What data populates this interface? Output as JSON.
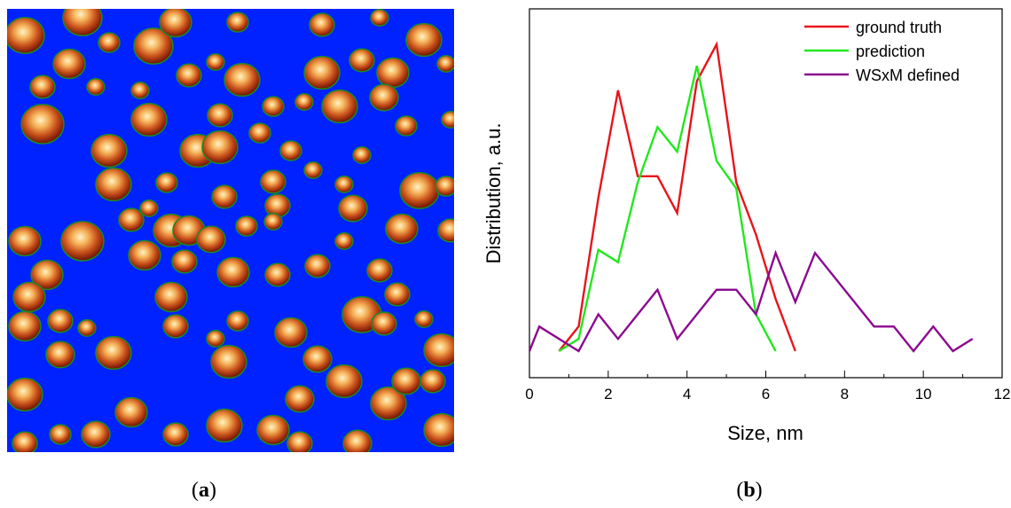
{
  "panels": {
    "a": {
      "label_open": "(",
      "label_letter": "a",
      "label_close": ")"
    },
    "b": {
      "label_open": "(",
      "label_letter": "b",
      "label_close": ")"
    }
  },
  "afm_image": {
    "background_color": "#0022ff",
    "particle_edge_color": "#1a8a2a"
  },
  "chart_data": {
    "type": "line",
    "title": "",
    "xlabel": "Size, nm",
    "ylabel": "Distribution, a.u.",
    "xlim": [
      0,
      12
    ],
    "x_ticks": [
      0,
      2,
      4,
      6,
      8,
      10,
      12
    ],
    "ylim": [
      0,
      1
    ],
    "y_ticks_shown": false,
    "grid": false,
    "legend_position": "top-right",
    "series": [
      {
        "name": "ground truth",
        "color": "#e8141b",
        "x": [
          0.75,
          1.25,
          1.75,
          2.25,
          2.75,
          3.25,
          3.75,
          4.25,
          4.75,
          5.25,
          5.75,
          6.25,
          6.75
        ],
        "y": [
          0.0,
          0.08,
          0.5,
          0.85,
          0.57,
          0.57,
          0.45,
          0.88,
          1.0,
          0.55,
          0.38,
          0.17,
          0.0
        ]
      },
      {
        "name": "prediction",
        "color": "#22e81e",
        "x": [
          0.75,
          1.25,
          1.75,
          2.25,
          2.75,
          3.25,
          3.75,
          4.25,
          4.75,
          5.25,
          5.75,
          6.25
        ],
        "y": [
          0.0,
          0.04,
          0.33,
          0.29,
          0.55,
          0.73,
          0.65,
          0.93,
          0.62,
          0.53,
          0.12,
          0.0
        ]
      },
      {
        "name": "WSxM defined",
        "color": "#8b0a8f",
        "x": [
          0.0,
          0.25,
          0.75,
          1.25,
          1.75,
          2.25,
          2.75,
          3.25,
          3.75,
          4.25,
          4.75,
          5.25,
          5.75,
          6.25,
          6.75,
          7.25,
          7.75,
          8.25,
          8.75,
          9.25,
          9.75,
          10.25,
          10.75,
          11.25
        ],
        "y": [
          0.0,
          0.08,
          0.04,
          0.0,
          0.12,
          0.04,
          0.12,
          0.2,
          0.04,
          0.12,
          0.2,
          0.2,
          0.12,
          0.32,
          0.16,
          0.32,
          0.24,
          0.16,
          0.08,
          0.08,
          0.0,
          0.08,
          0.0,
          0.04
        ]
      }
    ]
  }
}
